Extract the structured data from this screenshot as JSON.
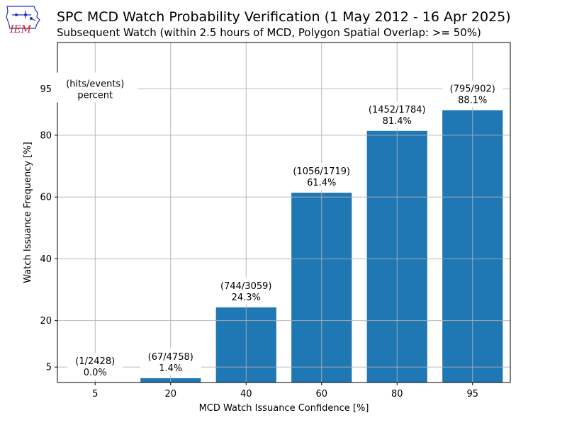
{
  "header": {
    "logo_text": "IEM",
    "title": "SPC MCD Watch Probability Verification (1 May 2012 - 16 Apr 2025)",
    "subtitle": "Subsequent Watch (within 2.5 hours of MCD, Polygon Spatial Overlap: >= 50%)"
  },
  "colors": {
    "bar": "#1f77b4",
    "grid": "#b0b0b0",
    "logo_red": "#cc2222",
    "logo_blue": "#2233bb"
  },
  "chart_data": {
    "type": "bar",
    "categories": [
      "5",
      "20",
      "40",
      "60",
      "80",
      "95"
    ],
    "values": [
      0.0,
      1.4,
      24.3,
      61.4,
      81.4,
      88.1
    ],
    "hits": [
      1,
      67,
      744,
      1056,
      1452,
      795
    ],
    "events": [
      2428,
      4758,
      3059,
      1719,
      1784,
      902
    ],
    "data_labels": [
      "(1/2428)\n0.0%",
      "(67/4758)\n1.4%",
      "(744/3059)\n24.3%",
      "(1056/1719)\n61.4%",
      "(1452/1784)\n81.4%",
      "(795/902)\n88.1%"
    ],
    "legend_note": "(hits/events)\npercent",
    "xlabel": "MCD Watch Issuance Confidence [%]",
    "ylabel": "Watch Issuance Frequency [%]",
    "ylim": [
      0,
      110
    ],
    "yticks": [
      5,
      20,
      40,
      60,
      80,
      95
    ],
    "grid": true
  }
}
